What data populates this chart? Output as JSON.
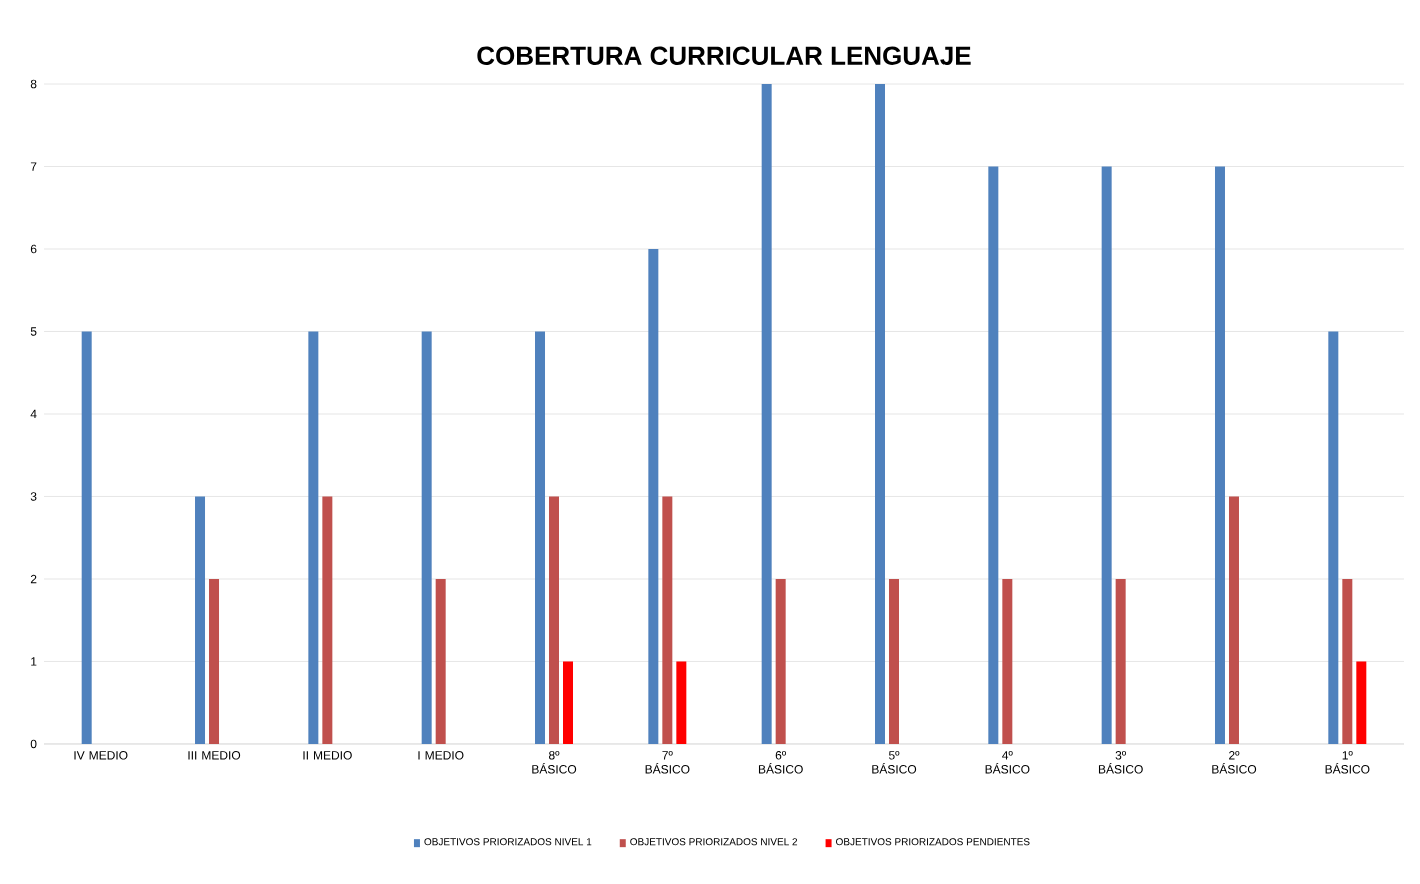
{
  "chart_data": {
    "type": "bar",
    "title": "COBERTURA CURRICULAR LENGUAJE",
    "categories": [
      "IV MEDIO",
      "III MEDIO",
      "II MEDIO",
      "I MEDIO",
      "8º BÁSICO",
      "7º BÁSICO",
      "6º BÁSICO",
      "5º BÁSICO",
      "4º BÁSICO",
      "3º BÁSICO",
      "2º BÁSICO",
      "1º BÁSICO"
    ],
    "series": [
      {
        "name": "OBJETIVOS PRIORIZADOS NIVEL 1",
        "color": "#4f81bd",
        "values": [
          5,
          3,
          5,
          5,
          5,
          6,
          8,
          8,
          7,
          7,
          7,
          5
        ]
      },
      {
        "name": "OBJETIVOS PRIORIZADOS NIVEL 2",
        "color": "#c0504d",
        "values": [
          0,
          2,
          3,
          2,
          3,
          3,
          2,
          2,
          2,
          2,
          3,
          2
        ]
      },
      {
        "name": "OBJETIVOS PRIORIZADOS PENDIENTES",
        "color": "#ff0000",
        "values": [
          0,
          0,
          0,
          0,
          1,
          1,
          0,
          0,
          0,
          0,
          0,
          1
        ]
      }
    ],
    "ylim": [
      0,
      8
    ],
    "yticks": [
      0,
      1,
      2,
      3,
      4,
      5,
      6,
      7,
      8
    ],
    "grid": "y",
    "legend": "bottom"
  }
}
